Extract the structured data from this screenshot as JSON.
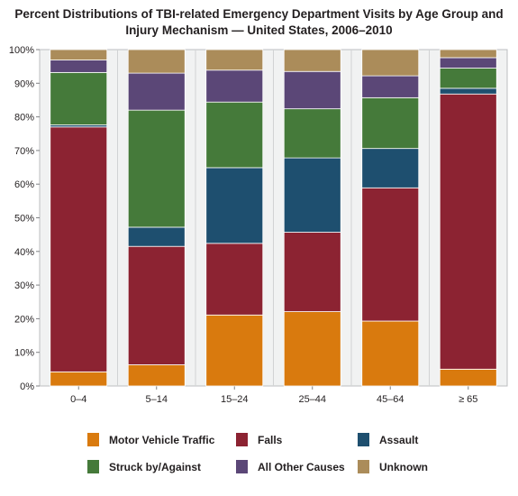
{
  "chart_data": {
    "type": "bar",
    "stacked": true,
    "title": "Percent Distributions of TBI-related Emergency Department Visits by Age Group and Injury Mechanism — United States, 2006–2010",
    "title_lines": [
      "Percent Distributions of TBI-related Emergency Department Visits by Age Group and",
      "Injury Mechanism — United States, 2006–2010"
    ],
    "xlabel": "",
    "ylabel": "",
    "ylim": [
      0,
      100
    ],
    "yticks": [
      "0%",
      "10%",
      "20%",
      "30%",
      "40%",
      "50%",
      "60%",
      "70%",
      "80%",
      "90%",
      "100%"
    ],
    "grid": false,
    "legend_position": "bottom",
    "categories": [
      "0–4",
      "5–14",
      "15–24",
      "25–44",
      "45–64",
      "≥ 65"
    ],
    "series": [
      {
        "name": "Motor Vehicle Traffic",
        "color": "#d97a0e",
        "values": [
          4.2,
          6.3,
          21.1,
          22.1,
          19.3,
          5.0
        ]
      },
      {
        "name": "Falls",
        "color": "#8c2332",
        "values": [
          72.8,
          35.2,
          21.3,
          23.6,
          39.6,
          81.8
        ]
      },
      {
        "name": "Assault",
        "color": "#1e4f6f",
        "values": [
          0.6,
          5.7,
          22.5,
          22.1,
          11.7,
          1.7
        ]
      },
      {
        "name": "Struck by/Against",
        "color": "#457a3a",
        "values": [
          15.6,
          34.8,
          19.5,
          14.6,
          15.1,
          6.0
        ]
      },
      {
        "name": "All Other Causes",
        "color": "#5b4777",
        "values": [
          3.7,
          11.0,
          9.5,
          11.1,
          6.5,
          3.1
        ]
      },
      {
        "name": "Unknown",
        "color": "#ab8c5a",
        "values": [
          3.1,
          7.0,
          6.1,
          6.5,
          7.8,
          2.4
        ]
      }
    ]
  }
}
